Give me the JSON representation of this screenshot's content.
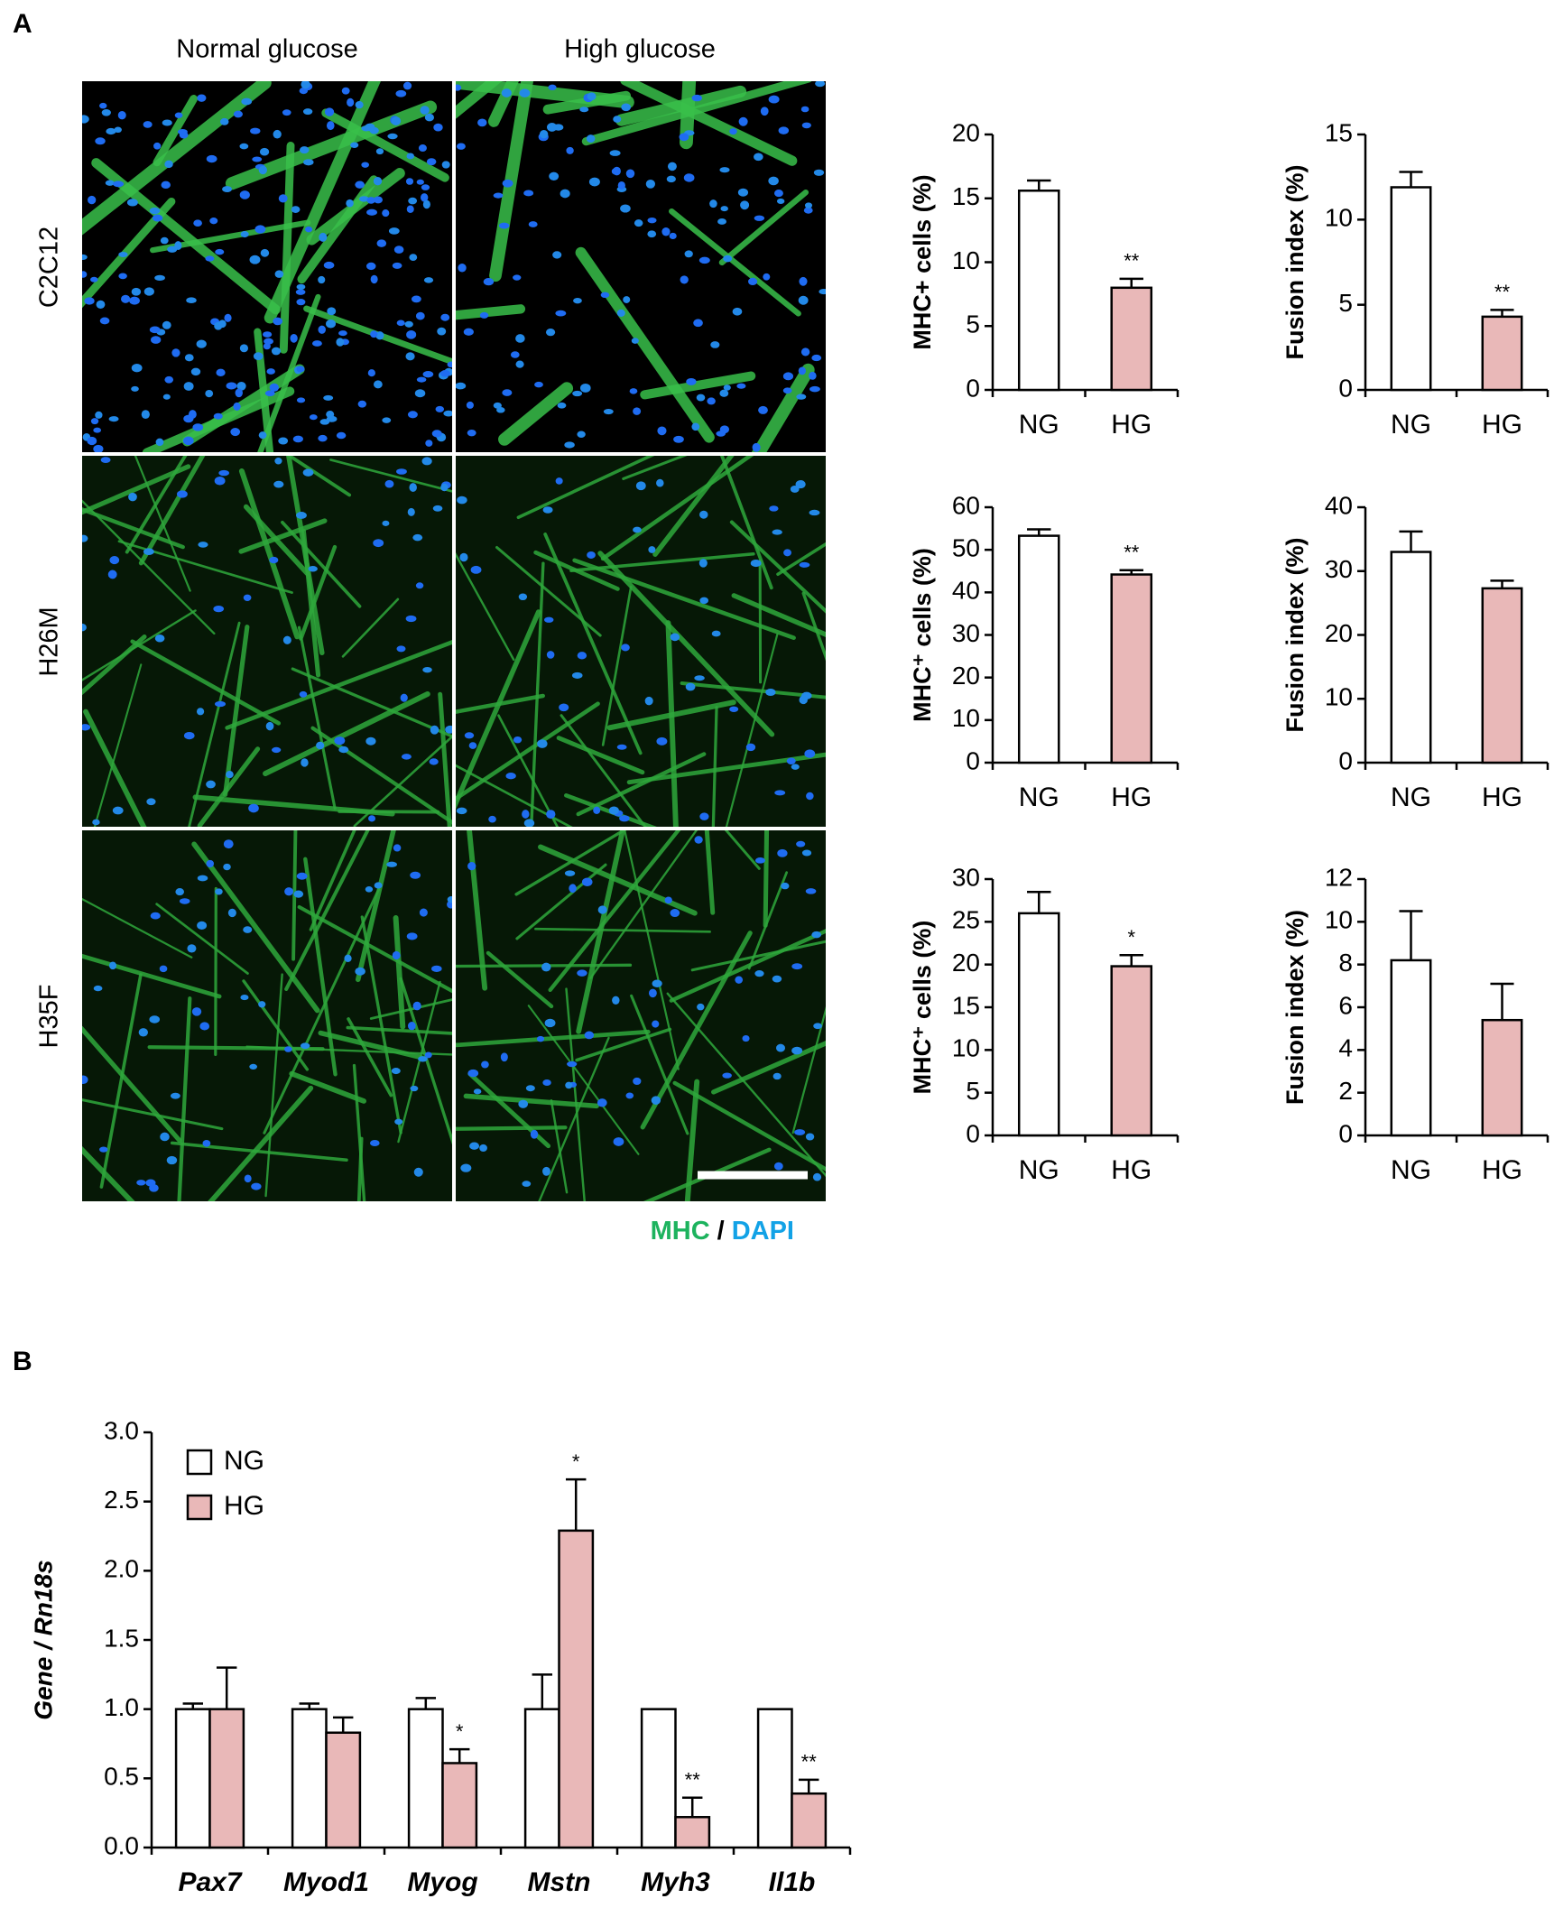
{
  "panel_labels": [
    "A",
    "B"
  ],
  "panel_a": {
    "columns": [
      "Normal glucose",
      "High glucose"
    ],
    "rows": [
      "C2C12",
      "H26M",
      "H35F"
    ],
    "stain": [
      "MHC",
      "/",
      "DAPI"
    ]
  },
  "chart_data": [
    {
      "type": "bar",
      "ylabel": "MHC+ cells (%)",
      "categories": [
        "NG",
        "HG"
      ],
      "values": [
        15.6,
        8.0
      ],
      "errors": [
        0.8,
        0.7
      ],
      "significance": [
        null,
        "**"
      ],
      "colors": [
        "#ffffff",
        "#e9b8b8"
      ],
      "ylim": [
        0,
        20
      ],
      "yticks": [
        0,
        5,
        10,
        15,
        20
      ]
    },
    {
      "type": "bar",
      "ylabel": "Fusion index (%)",
      "categories": [
        "NG",
        "HG"
      ],
      "values": [
        11.9,
        4.3
      ],
      "errors": [
        0.9,
        0.4
      ],
      "significance": [
        null,
        "**"
      ],
      "colors": [
        "#ffffff",
        "#e9b8b8"
      ],
      "ylim": [
        0,
        15
      ],
      "yticks": [
        0,
        5,
        10,
        15
      ]
    },
    {
      "type": "bar",
      "ylabel": "MHC⁺ cells (%)",
      "categories": [
        "NG",
        "HG"
      ],
      "values": [
        53.3,
        44.2
      ],
      "errors": [
        1.5,
        1.0
      ],
      "significance": [
        null,
        "**"
      ],
      "colors": [
        "#ffffff",
        "#e9b8b8"
      ],
      "ylim": [
        0,
        60
      ],
      "yticks": [
        0,
        10,
        20,
        30,
        40,
        50,
        60
      ]
    },
    {
      "type": "bar",
      "ylabel": "Fusion index (%)",
      "categories": [
        "NG",
        "HG"
      ],
      "values": [
        33.0,
        27.3
      ],
      "errors": [
        3.2,
        1.2
      ],
      "significance": [
        null,
        null
      ],
      "colors": [
        "#ffffff",
        "#e9b8b8"
      ],
      "ylim": [
        0,
        40
      ],
      "yticks": [
        0,
        10,
        20,
        30,
        40
      ]
    },
    {
      "type": "bar",
      "ylabel": "MHC⁺ cells (%)",
      "categories": [
        "NG",
        "HG"
      ],
      "values": [
        26.0,
        19.8
      ],
      "errors": [
        2.5,
        1.3
      ],
      "significance": [
        null,
        "*"
      ],
      "colors": [
        "#ffffff",
        "#e9b8b8"
      ],
      "ylim": [
        0,
        30
      ],
      "yticks": [
        0,
        5,
        10,
        15,
        20,
        25,
        30
      ]
    },
    {
      "type": "bar",
      "ylabel": "Fusion index (%)",
      "categories": [
        "NG",
        "HG"
      ],
      "values": [
        8.2,
        5.4
      ],
      "errors": [
        2.3,
        1.7
      ],
      "significance": [
        null,
        null
      ],
      "colors": [
        "#ffffff",
        "#e9b8b8"
      ],
      "ylim": [
        0,
        12
      ],
      "yticks": [
        0,
        2,
        4,
        6,
        8,
        10,
        12
      ]
    },
    {
      "type": "bar",
      "ylabel": "Gene / Rn18s",
      "categories": [
        "Pax7",
        "Myod1",
        "Myog",
        "Mstn",
        "Myh3",
        "Il1b"
      ],
      "legend": "upper left",
      "series": [
        {
          "name": "NG",
          "color": "#ffffff",
          "values": [
            1.0,
            1.0,
            1.0,
            1.0,
            1.0,
            1.0
          ],
          "errors": [
            0.04,
            0.04,
            0.08,
            0.25,
            0,
            0
          ]
        },
        {
          "name": "HG",
          "color": "#e9b8b8",
          "values": [
            1.0,
            0.83,
            0.61,
            2.29,
            0.22,
            0.39
          ],
          "errors": [
            0.3,
            0.11,
            0.1,
            0.37,
            0.14,
            0.1
          ],
          "significance": [
            null,
            null,
            "*",
            "*",
            "**",
            "**"
          ]
        }
      ],
      "ylim": [
        0,
        3
      ],
      "yticks": [
        {
          "value": 0,
          "label": "0.0"
        },
        {
          "value": 0.5,
          "label": "0.5"
        },
        {
          "value": 1,
          "label": "1.0"
        },
        {
          "value": 1.5,
          "label": "1.5"
        },
        {
          "value": 2,
          "label": "2.0"
        },
        {
          "value": 2.5,
          "label": "2.5"
        },
        {
          "value": 3,
          "label": "3.0"
        }
      ]
    }
  ]
}
